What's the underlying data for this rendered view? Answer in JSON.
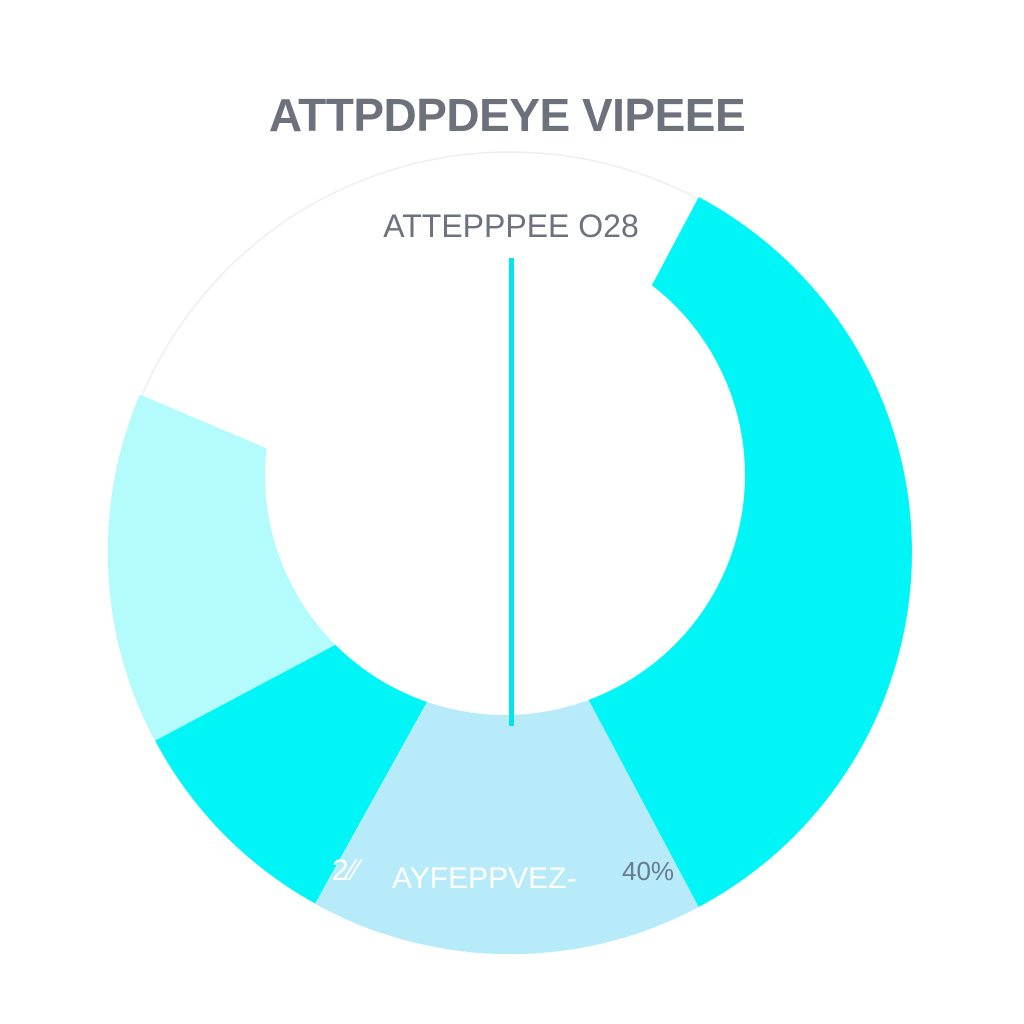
{
  "chart_data": {
    "type": "pie",
    "title": "ATTPDPDEYE VIPEEE",
    "subtitle": "ATTEPPPEE O28",
    "colors": {
      "cyan": "#00f6f6",
      "pale_blue": "#b8ebfa",
      "pale_cyan": "#b3fbfd",
      "divider": "#00e4ef",
      "outline": "#eeeeee"
    },
    "slices_deg": [
      {
        "color": "cyan",
        "start": -62,
        "end": 203
      },
      {
        "color": "pale_cyan",
        "start": 152,
        "end": 203
      },
      {
        "color": "pale_blue",
        "start": 62,
        "end": 119
      }
    ],
    "labels": [
      {
        "text": "2⁄⁄",
        "style": "white"
      },
      {
        "text": "AYFEPPVEZ-",
        "style": "white"
      },
      {
        "text": "40%",
        "style": "dark"
      }
    ]
  }
}
